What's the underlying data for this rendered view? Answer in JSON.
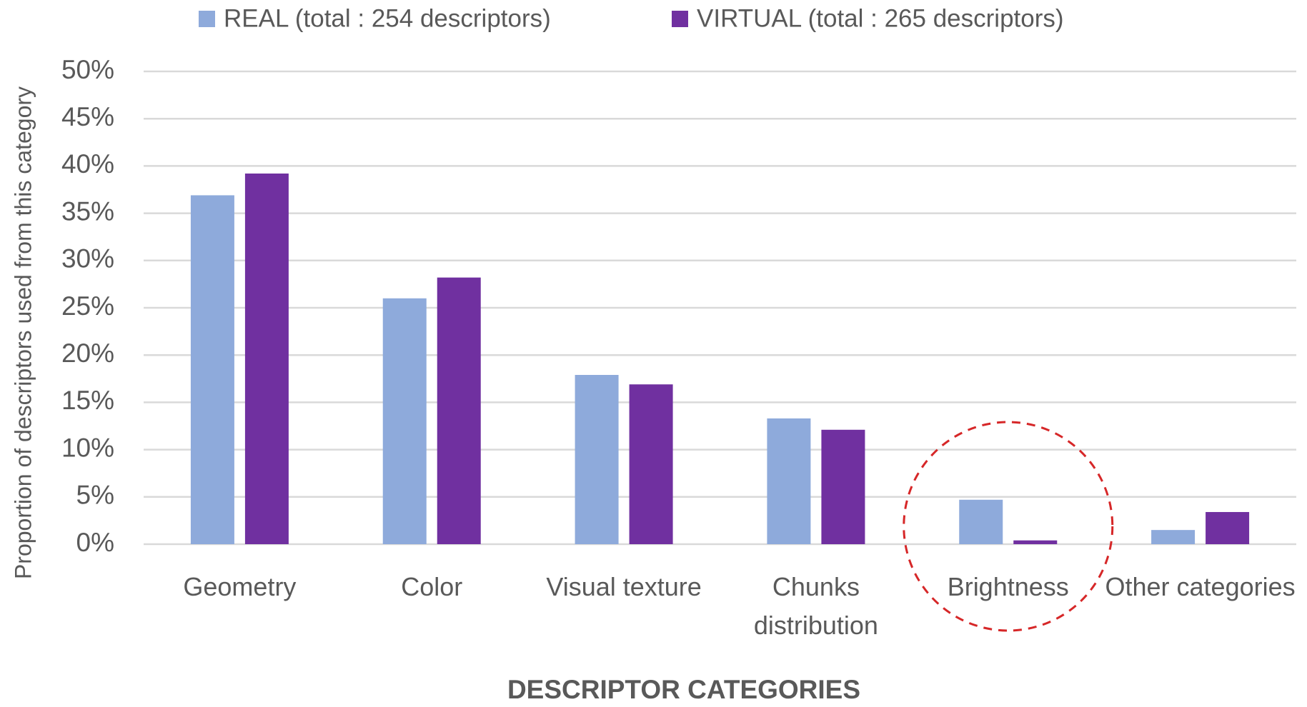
{
  "chart_data": {
    "type": "bar",
    "xlabel": "DESCRIPTOR CATEGORIES",
    "ylabel": "Proportion of descriptors used from this category",
    "categories": [
      "Geometry",
      "Color",
      "Visual texture",
      "Chunks distribution",
      "Brightness",
      "Other categories"
    ],
    "series": [
      {
        "name": "REAL (total : 254 descriptors)",
        "color": "#8eaadb",
        "values": [
          36.9,
          26.0,
          17.9,
          13.3,
          4.7,
          1.5
        ]
      },
      {
        "name": "VIRTUAL (total : 265 descriptors)",
        "color": "#7030a0",
        "values": [
          39.2,
          28.2,
          16.9,
          12.1,
          0.4,
          3.4
        ]
      }
    ],
    "ylim": [
      0,
      50
    ],
    "yticks": [
      {
        "value": 0,
        "label": "0%"
      },
      {
        "value": 5,
        "label": "5%"
      },
      {
        "value": 10,
        "label": "10%"
      },
      {
        "value": 15,
        "label": "15%"
      },
      {
        "value": 20,
        "label": "20%"
      },
      {
        "value": 25,
        "label": "25%"
      },
      {
        "value": 30,
        "label": "30%"
      },
      {
        "value": 35,
        "label": "35%"
      },
      {
        "value": 40,
        "label": "40%"
      },
      {
        "value": 45,
        "label": "45%"
      },
      {
        "value": 50,
        "label": "50%"
      }
    ],
    "grid": true
  }
}
